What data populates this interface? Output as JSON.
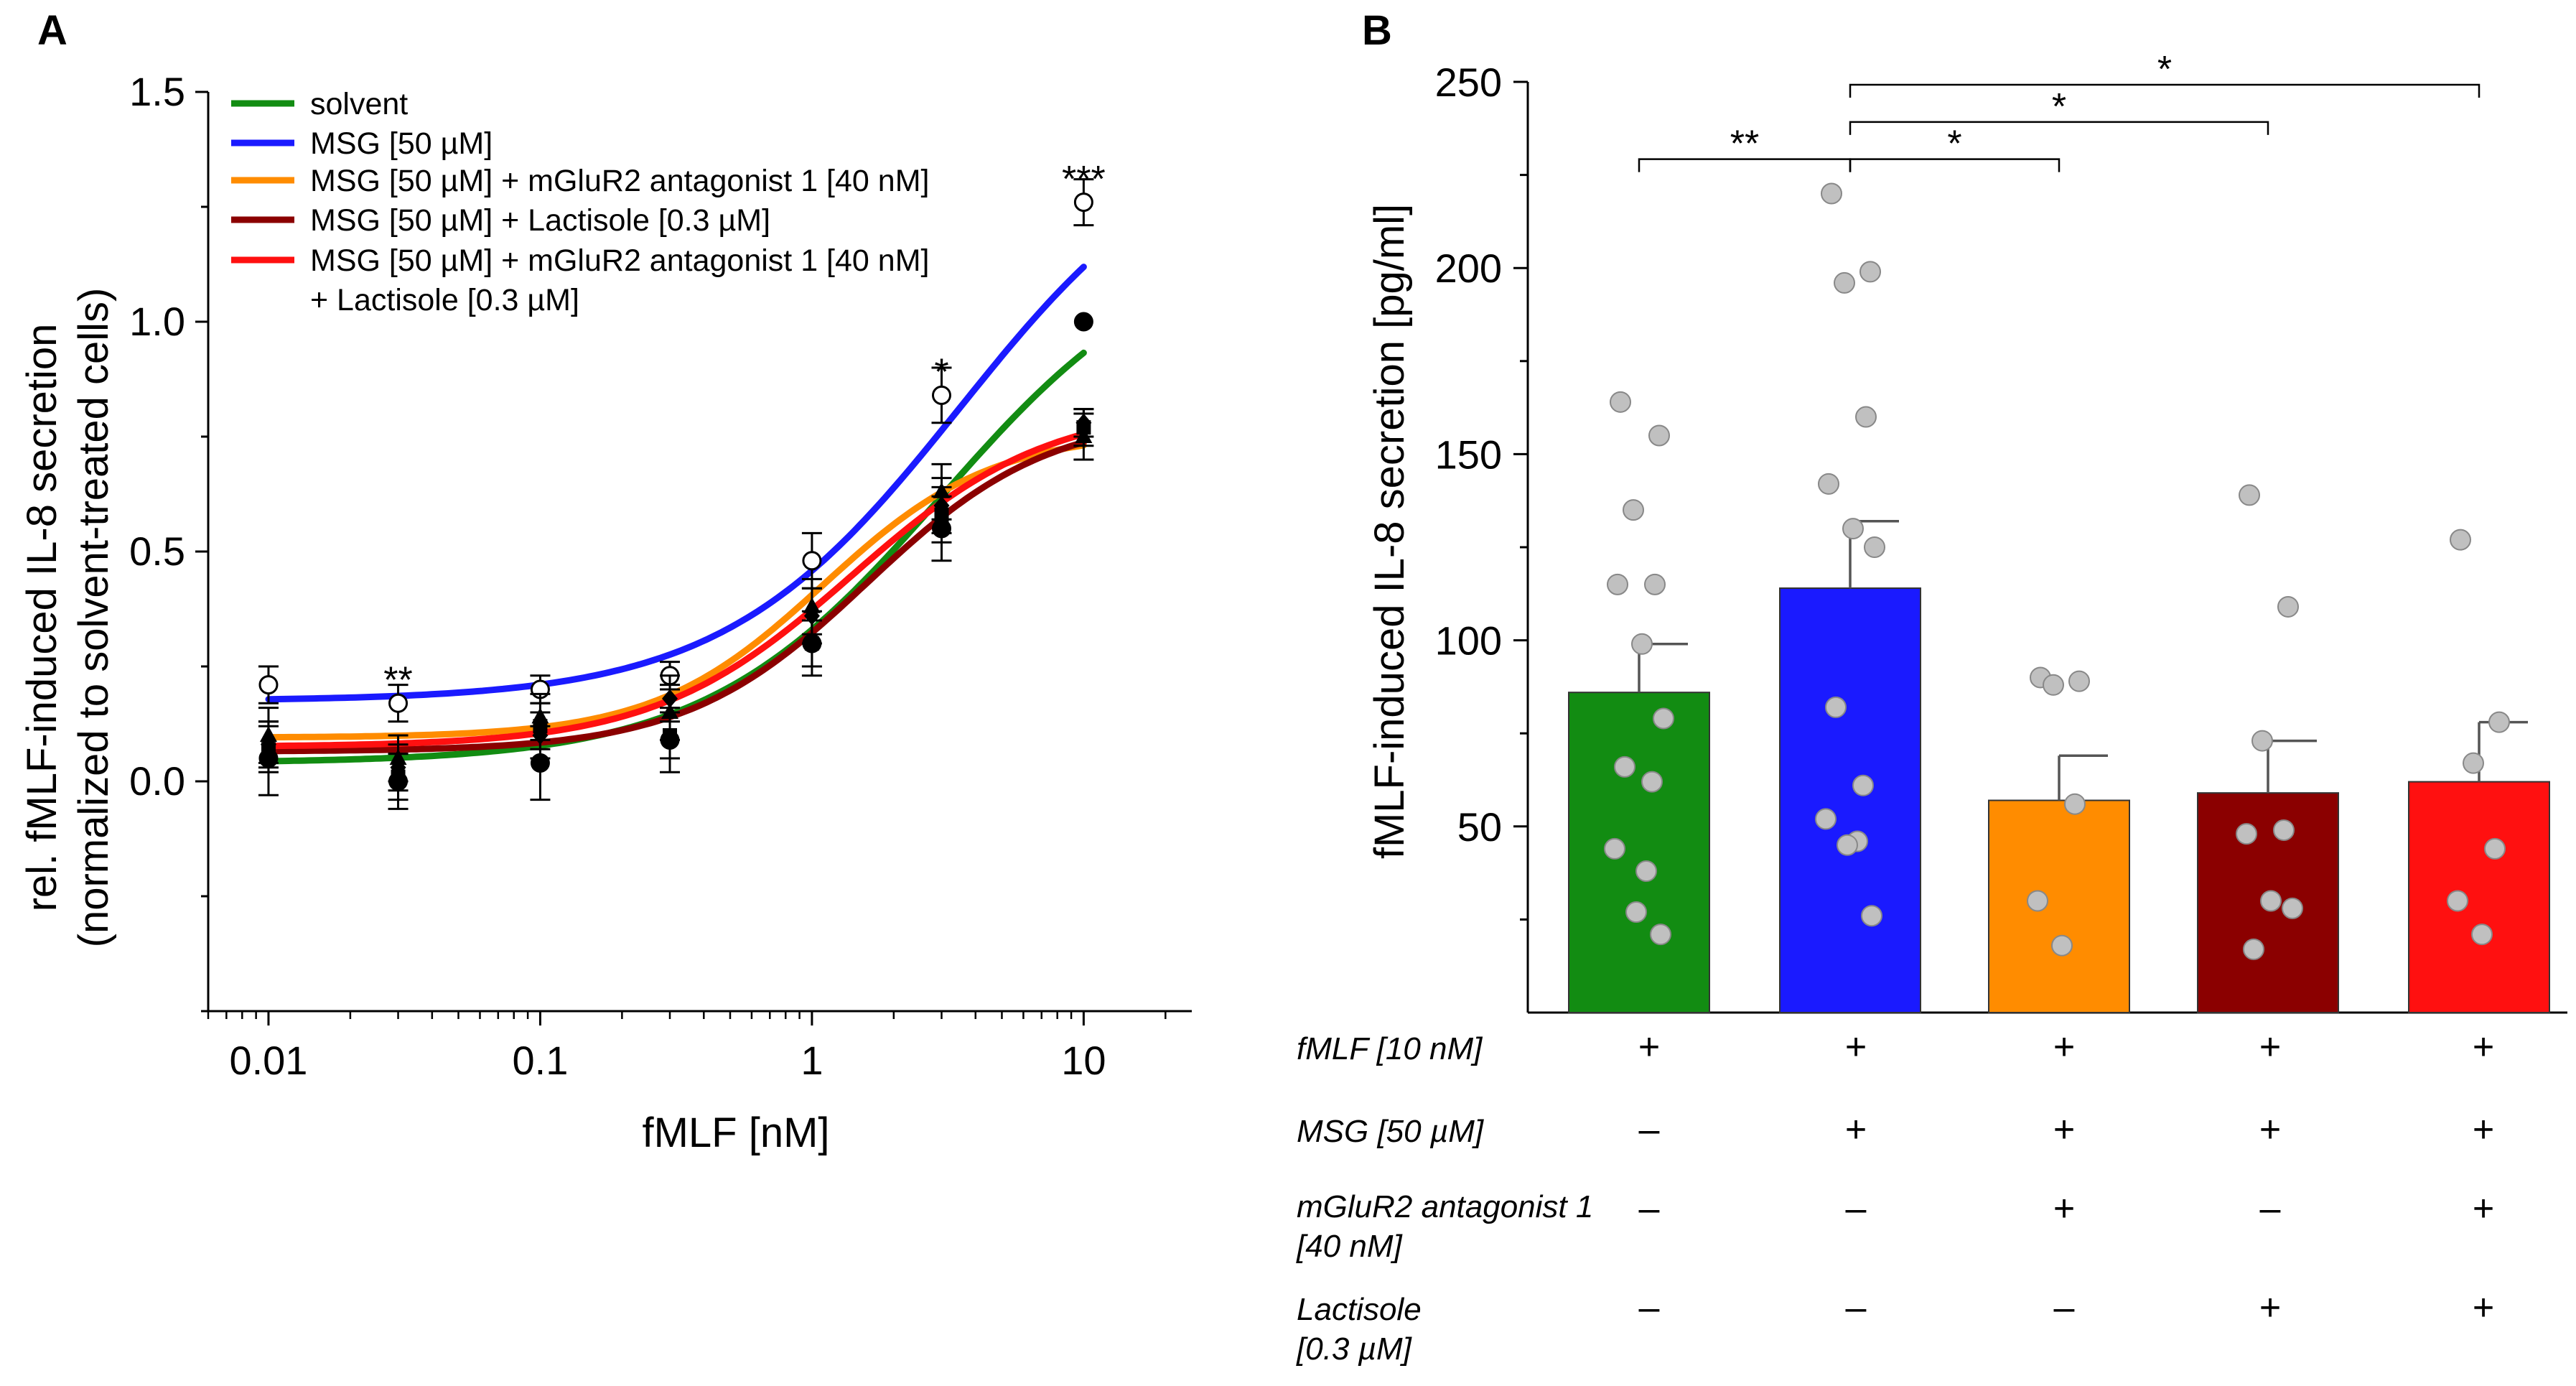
{
  "panels": {
    "a": {
      "letter": "A"
    },
    "b": {
      "letter": "B"
    }
  },
  "colors": {
    "solvent": "#128c12",
    "msg": "#1a1aff",
    "msg_mglur2": "#ff8c00",
    "msg_lactisole": "#8b0000",
    "msg_mglur2_lactisole": "#ff1010",
    "dot": "#c0c0c0",
    "axis": "#000000"
  },
  "chart_data": [
    {
      "type": "line",
      "panel": "A",
      "title": "",
      "xlabel": "fMLF [nM]",
      "ylabel_line1": "rel. fMLF-induced IL-8 secretion",
      "ylabel_line2": "(normalized to solvent-treated cells)",
      "xscale": "log",
      "xlim": [
        0.006,
        25
      ],
      "ylim": [
        -0.5,
        1.5
      ],
      "x": [
        0.01,
        0.03,
        0.1,
        0.3,
        1,
        3,
        10
      ],
      "xtick_labels": [
        "0.01",
        "0.1",
        "1",
        "10"
      ],
      "xtick_values": [
        0.01,
        0.1,
        1,
        10
      ],
      "ytick_labels": [
        "0.0",
        "0.5",
        "1.0",
        "1.5"
      ],
      "ytick_values": [
        0.0,
        0.5,
        1.0,
        1.5
      ],
      "legend_position": "top-left",
      "series": [
        {
          "name": "solvent",
          "key": "solvent",
          "values": [
            0.05,
            0.0,
            0.04,
            0.09,
            0.3,
            0.55,
            1.0
          ],
          "errors": [
            0.08,
            0.06,
            0.08,
            0.07,
            0.07,
            0.07,
            0.0
          ],
          "fit": {
            "bottom": 0.04,
            "top": 1.2,
            "ec50": 3.0,
            "hill": 1.0
          }
        },
        {
          "name": "MSG [50 µM]",
          "key": "msg",
          "values": [
            0.21,
            0.17,
            0.2,
            0.23,
            0.48,
            0.84,
            1.26
          ],
          "errors": [
            0.04,
            0.04,
            0.03,
            0.03,
            0.06,
            0.06,
            0.05
          ],
          "fit": {
            "bottom": 0.175,
            "top": 1.45,
            "ec50": 3.5,
            "hill": 1.0
          }
        },
        {
          "name": "MSG [50 µM] + mGluR2 antagonist 1 [40 nM]",
          "key": "msg_mglur2",
          "values": [
            0.1,
            0.05,
            0.14,
            0.15,
            0.38,
            0.63,
            0.75
          ],
          "errors": [
            0.06,
            0.05,
            0.05,
            0.06,
            0.06,
            0.06,
            0.05
          ],
          "fit": {
            "bottom": 0.095,
            "top": 0.76,
            "ec50": 1.1,
            "hill": 1.4
          }
        },
        {
          "name": "MSG [50 µM] + Lactisole [0.3 µM]",
          "key": "msg_lactisole",
          "values": [
            0.07,
            0.01,
            0.12,
            0.1,
            0.3,
            0.58,
            0.77
          ],
          "errors": [
            0.05,
            0.05,
            0.05,
            0.05,
            0.05,
            0.06,
            0.04
          ],
          "fit": {
            "bottom": 0.065,
            "top": 0.8,
            "ec50": 1.6,
            "hill": 1.3
          }
        },
        {
          "name_line1": "MSG [50 µM] + mGluR2 antagonist 1 [40 nM]",
          "name_line2": "+ Lactisole [0.3 µM]",
          "key": "msg_mglur2_lactisole",
          "values": [
            0.08,
            0.03,
            0.1,
            0.18,
            0.36,
            0.6,
            0.78
          ],
          "errors": [
            0.05,
            0.05,
            0.05,
            0.05,
            0.06,
            0.06,
            0.03
          ],
          "fit": {
            "bottom": 0.075,
            "top": 0.82,
            "ec50": 1.4,
            "hill": 1.2
          }
        }
      ],
      "annotations": [
        {
          "text": "**",
          "x": 0.03,
          "y": 0.24
        },
        {
          "text": "*",
          "x": 3,
          "y": 0.91
        },
        {
          "text": "***",
          "x": 10,
          "y": 1.33
        }
      ]
    },
    {
      "type": "bar",
      "panel": "B",
      "title": "",
      "ylabel": "fMLF-induced IL-8 secretion [pg/ml]",
      "ylim": [
        0,
        250
      ],
      "ytick_labels": [
        "50",
        "100",
        "150",
        "200",
        "250"
      ],
      "ytick_values": [
        50,
        100,
        150,
        200,
        250
      ],
      "series": [
        {
          "key": "solvent",
          "mean": 86,
          "sem": 13,
          "points": [
            164,
            155,
            135,
            115,
            115,
            99,
            79,
            66,
            62,
            44,
            38,
            27,
            21
          ]
        },
        {
          "key": "msg",
          "mean": 114,
          "sem": 18,
          "points": [
            220,
            199,
            196,
            160,
            142,
            130,
            125,
            82,
            61,
            52,
            46,
            45,
            26
          ]
        },
        {
          "key": "msg_mglur2",
          "mean": 57,
          "sem": 12,
          "points": [
            90,
            89,
            88,
            56,
            30,
            18
          ]
        },
        {
          "key": "msg_lactisole",
          "mean": 59,
          "sem": 14,
          "points": [
            139,
            109,
            73,
            49,
            48,
            30,
            28,
            17
          ]
        },
        {
          "key": "msg_mglur2_lactisole",
          "mean": 62,
          "sem": 16,
          "points": [
            127,
            78,
            67,
            44,
            30,
            21
          ]
        }
      ],
      "significance": [
        {
          "from": 0,
          "to": 1,
          "label": "**",
          "y": 230
        },
        {
          "from": 1,
          "to": 2,
          "label": "*",
          "y": 230
        },
        {
          "from": 1,
          "to": 3,
          "label": "*",
          "y": 240
        },
        {
          "from": 1,
          "to": 4,
          "label": "*",
          "y": 250
        }
      ],
      "condition_rows": [
        {
          "label_line1": "fMLF [10 nM]",
          "label_line2": "",
          "signs": [
            "+",
            "+",
            "+",
            "+",
            "+"
          ]
        },
        {
          "label_line1": "MSG [50 µM]",
          "label_line2": "",
          "signs": [
            "–",
            "+",
            "+",
            "+",
            "+"
          ]
        },
        {
          "label_line1": "mGluR2 antagonist 1",
          "label_line2": "[40 nM]",
          "signs": [
            "–",
            "–",
            "+",
            "–",
            "+"
          ]
        },
        {
          "label_line1": "Lactisole",
          "label_line2": "[0.3 µM]",
          "signs": [
            "–",
            "–",
            "–",
            "+",
            "+"
          ]
        }
      ]
    }
  ]
}
